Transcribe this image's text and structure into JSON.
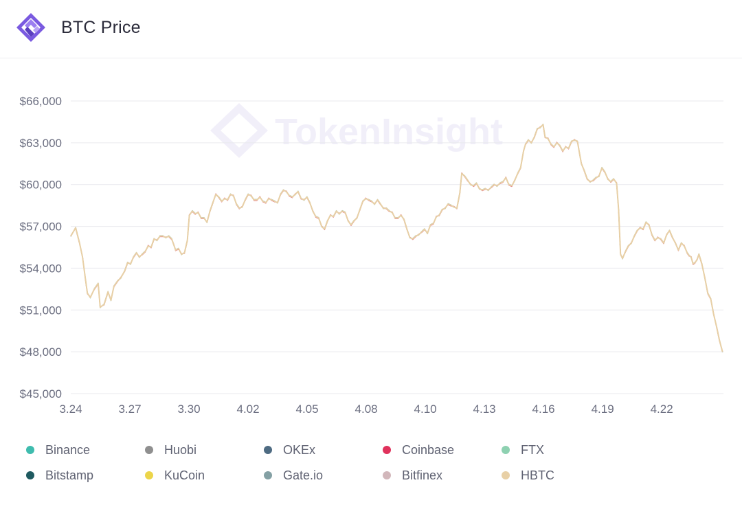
{
  "header": {
    "title": "BTC Price",
    "logo_icon": "tokeninsight-logo-icon"
  },
  "watermark": {
    "text": "TokenInsight"
  },
  "chart_data": {
    "type": "line",
    "title": "BTC Price",
    "xlabel": "",
    "ylabel": "",
    "x_ticks": [
      "3.24",
      "3.27",
      "3.30",
      "4.02",
      "4.05",
      "4.08",
      "4.10",
      "4.13",
      "4.16",
      "4.19",
      "4.22"
    ],
    "y_ticks": [
      "$45,000",
      "$48,000",
      "$51,000",
      "$54,000",
      "$57,000",
      "$60,000",
      "$63,000",
      "$66,000"
    ],
    "ylim": [
      45000,
      66000
    ],
    "grid": true,
    "legend_position": "bottom",
    "series": [
      {
        "name": "Binance",
        "color": "#3fbcae"
      },
      {
        "name": "Huobi",
        "color": "#8f8f8f"
      },
      {
        "name": "OKEx",
        "color": "#4e6b82"
      },
      {
        "name": "Coinbase",
        "color": "#e0325c"
      },
      {
        "name": "FTX",
        "color": "#8ed1b1"
      },
      {
        "name": "Bitstamp",
        "color": "#1f5a60"
      },
      {
        "name": "KuCoin",
        "color": "#ecd54a"
      },
      {
        "name": "Gate.io",
        "color": "#84a0a4"
      },
      {
        "name": "Bitfinex",
        "color": "#d2b7bb"
      },
      {
        "name": "HBTC",
        "color": "#e8d0a6"
      }
    ],
    "x_range_days": [
      0,
      31.7
    ],
    "price_points": [
      [
        0.0,
        56300
      ],
      [
        0.25,
        56900
      ],
      [
        0.45,
        55800
      ],
      [
        0.6,
        54800
      ],
      [
        0.75,
        53200
      ],
      [
        0.85,
        52200
      ],
      [
        1.0,
        51900
      ],
      [
        1.2,
        52500
      ],
      [
        1.4,
        52900
      ],
      [
        1.5,
        51200
      ],
      [
        1.7,
        51400
      ],
      [
        1.9,
        52300
      ],
      [
        2.05,
        51700
      ],
      [
        2.2,
        52700
      ],
      [
        2.4,
        53100
      ],
      [
        2.55,
        53300
      ],
      [
        2.75,
        53800
      ],
      [
        2.9,
        54400
      ],
      [
        3.05,
        54300
      ],
      [
        3.2,
        54800
      ],
      [
        3.35,
        55100
      ],
      [
        3.5,
        54800
      ],
      [
        3.65,
        55000
      ],
      [
        3.8,
        55200
      ],
      [
        3.95,
        55600
      ],
      [
        4.1,
        55500
      ],
      [
        4.25,
        56100
      ],
      [
        4.4,
        56000
      ],
      [
        4.55,
        56300
      ],
      [
        4.7,
        56300
      ],
      [
        4.85,
        56200
      ],
      [
        5.0,
        56300
      ],
      [
        5.15,
        56100
      ],
      [
        5.25,
        55700
      ],
      [
        5.35,
        55300
      ],
      [
        5.5,
        55400
      ],
      [
        5.65,
        55000
      ],
      [
        5.8,
        55100
      ],
      [
        5.95,
        56000
      ],
      [
        6.05,
        57800
      ],
      [
        6.2,
        58100
      ],
      [
        6.35,
        57900
      ],
      [
        6.5,
        58000
      ],
      [
        6.65,
        57600
      ],
      [
        6.8,
        57600
      ],
      [
        6.95,
        57300
      ],
      [
        7.1,
        58100
      ],
      [
        7.25,
        58700
      ],
      [
        7.4,
        59300
      ],
      [
        7.55,
        59100
      ],
      [
        7.7,
        58800
      ],
      [
        7.85,
        59000
      ],
      [
        8.0,
        58900
      ],
      [
        8.15,
        59300
      ],
      [
        8.3,
        59200
      ],
      [
        8.45,
        58600
      ],
      [
        8.6,
        58300
      ],
      [
        8.75,
        58400
      ],
      [
        8.9,
        58900
      ],
      [
        9.05,
        59300
      ],
      [
        9.2,
        59200
      ],
      [
        9.35,
        58900
      ],
      [
        9.5,
        58900
      ],
      [
        9.65,
        59100
      ],
      [
        9.8,
        58800
      ],
      [
        9.95,
        58700
      ],
      [
        10.1,
        59000
      ],
      [
        10.25,
        58900
      ],
      [
        10.4,
        58800
      ],
      [
        10.55,
        58700
      ],
      [
        10.7,
        59300
      ],
      [
        10.85,
        59600
      ],
      [
        11.0,
        59500
      ],
      [
        11.15,
        59200
      ],
      [
        11.3,
        59100
      ],
      [
        11.45,
        59300
      ],
      [
        11.6,
        59500
      ],
      [
        11.75,
        59000
      ],
      [
        11.9,
        58900
      ],
      [
        12.05,
        59100
      ],
      [
        12.2,
        58700
      ],
      [
        12.35,
        58100
      ],
      [
        12.5,
        57700
      ],
      [
        12.65,
        57600
      ],
      [
        12.8,
        57000
      ],
      [
        12.95,
        56800
      ],
      [
        13.1,
        57400
      ],
      [
        13.25,
        57800
      ],
      [
        13.4,
        57700
      ],
      [
        13.55,
        58100
      ],
      [
        13.7,
        57900
      ],
      [
        13.85,
        58100
      ],
      [
        14.0,
        58000
      ],
      [
        14.15,
        57400
      ],
      [
        14.3,
        57100
      ],
      [
        14.45,
        57400
      ],
      [
        14.6,
        57600
      ],
      [
        14.75,
        58200
      ],
      [
        14.9,
        58800
      ],
      [
        15.05,
        59000
      ],
      [
        15.2,
        58900
      ],
      [
        15.35,
        58800
      ],
      [
        15.5,
        58600
      ],
      [
        15.65,
        58900
      ],
      [
        15.8,
        58600
      ],
      [
        15.95,
        58300
      ],
      [
        16.1,
        58300
      ],
      [
        16.25,
        58100
      ],
      [
        16.4,
        58000
      ],
      [
        16.55,
        57600
      ],
      [
        16.7,
        57600
      ],
      [
        16.85,
        57800
      ],
      [
        17.0,
        57500
      ],
      [
        17.15,
        56800
      ],
      [
        17.3,
        56200
      ],
      [
        17.45,
        56100
      ],
      [
        17.6,
        56300
      ],
      [
        17.75,
        56400
      ],
      [
        17.9,
        56600
      ],
      [
        18.05,
        56800
      ],
      [
        18.2,
        56500
      ],
      [
        18.35,
        57100
      ],
      [
        18.5,
        57200
      ],
      [
        18.65,
        57700
      ],
      [
        18.8,
        57800
      ],
      [
        18.95,
        58200
      ],
      [
        19.1,
        58300
      ],
      [
        19.25,
        58600
      ],
      [
        19.4,
        58500
      ],
      [
        19.55,
        58400
      ],
      [
        19.7,
        58300
      ],
      [
        19.85,
        59400
      ],
      [
        19.95,
        60800
      ],
      [
        20.1,
        60600
      ],
      [
        20.25,
        60300
      ],
      [
        20.4,
        60000
      ],
      [
        20.55,
        59900
      ],
      [
        20.7,
        60100
      ],
      [
        20.85,
        59700
      ],
      [
        21.0,
        59600
      ],
      [
        21.15,
        59700
      ],
      [
        21.3,
        59600
      ],
      [
        21.45,
        59800
      ],
      [
        21.6,
        60000
      ],
      [
        21.75,
        59900
      ],
      [
        21.9,
        60100
      ],
      [
        22.05,
        60200
      ],
      [
        22.2,
        60500
      ],
      [
        22.35,
        60000
      ],
      [
        22.5,
        59900
      ],
      [
        22.65,
        60300
      ],
      [
        22.8,
        60800
      ],
      [
        22.95,
        61200
      ],
      [
        23.1,
        62400
      ],
      [
        23.2,
        62900
      ],
      [
        23.35,
        63200
      ],
      [
        23.5,
        63000
      ],
      [
        23.65,
        63400
      ],
      [
        23.8,
        64000
      ],
      [
        23.95,
        64100
      ],
      [
        24.1,
        64300
      ],
      [
        24.2,
        63400
      ],
      [
        24.35,
        63300
      ],
      [
        24.5,
        62900
      ],
      [
        24.65,
        62700
      ],
      [
        24.8,
        63000
      ],
      [
        24.95,
        62800
      ],
      [
        25.1,
        62400
      ],
      [
        25.25,
        62700
      ],
      [
        25.4,
        62600
      ],
      [
        25.55,
        63100
      ],
      [
        25.7,
        63200
      ],
      [
        25.85,
        63100
      ],
      [
        25.95,
        62300
      ],
      [
        26.05,
        61500
      ],
      [
        26.2,
        61000
      ],
      [
        26.35,
        60400
      ],
      [
        26.5,
        60200
      ],
      [
        26.65,
        60300
      ],
      [
        26.8,
        60500
      ],
      [
        26.95,
        60600
      ],
      [
        27.1,
        61200
      ],
      [
        27.25,
        60900
      ],
      [
        27.4,
        60400
      ],
      [
        27.55,
        60200
      ],
      [
        27.7,
        60400
      ],
      [
        27.85,
        60100
      ],
      [
        27.95,
        58200
      ],
      [
        28.05,
        55000
      ],
      [
        28.15,
        54700
      ],
      [
        28.3,
        55200
      ],
      [
        28.45,
        55600
      ],
      [
        28.6,
        55800
      ],
      [
        28.75,
        56300
      ],
      [
        28.9,
        56700
      ],
      [
        29.05,
        56900
      ],
      [
        29.2,
        56800
      ],
      [
        29.35,
        57300
      ],
      [
        29.5,
        57100
      ],
      [
        29.65,
        56400
      ],
      [
        29.8,
        56000
      ],
      [
        29.95,
        56200
      ],
      [
        30.1,
        56100
      ],
      [
        30.25,
        55800
      ],
      [
        30.4,
        56400
      ],
      [
        30.55,
        56700
      ],
      [
        30.7,
        56200
      ],
      [
        30.85,
        55800
      ],
      [
        31.0,
        55300
      ],
      [
        31.15,
        55800
      ],
      [
        31.3,
        55600
      ],
      [
        31.45,
        55100
      ],
      [
        31.55,
        54900
      ],
      [
        31.65,
        54800
      ],
      [
        31.75,
        54300
      ],
      [
        31.85,
        54400
      ],
      [
        31.95,
        54600
      ],
      [
        32.05,
        55000
      ],
      [
        32.2,
        54300
      ],
      [
        32.35,
        53300
      ],
      [
        32.5,
        52200
      ],
      [
        32.65,
        51800
      ],
      [
        32.8,
        50700
      ],
      [
        32.95,
        49800
      ],
      [
        33.1,
        48800
      ],
      [
        33.25,
        48000
      ]
    ]
  },
  "legend": {
    "items": [
      {
        "label": "Binance",
        "color": "#3fbcae"
      },
      {
        "label": "Huobi",
        "color": "#8f8f8f"
      },
      {
        "label": "OKEx",
        "color": "#4e6b82"
      },
      {
        "label": "Coinbase",
        "color": "#e0325c"
      },
      {
        "label": "FTX",
        "color": "#8ed1b1"
      },
      {
        "label": "Bitstamp",
        "color": "#1f5a60"
      },
      {
        "label": "KuCoin",
        "color": "#ecd54a"
      },
      {
        "label": "Gate.io",
        "color": "#84a0a4"
      },
      {
        "label": "Bitfinex",
        "color": "#d2b7bb"
      },
      {
        "label": "HBTC",
        "color": "#e8d0a6"
      }
    ]
  }
}
